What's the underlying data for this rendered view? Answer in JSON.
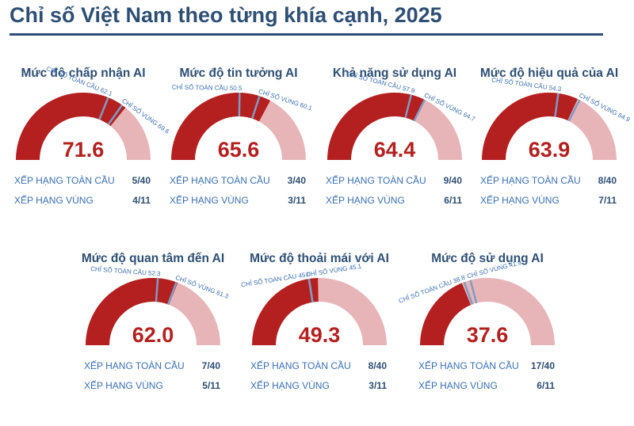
{
  "title": "Chỉ số Việt Nam theo từng khía cạnh, 2025",
  "colors": {
    "title": "#2e4f73",
    "score": "#b3201f",
    "gauge_fill": "#b3201f",
    "gauge_track": "#e7b5b8",
    "marker": "#7f9bc4",
    "rank_label": "#3a6fb0"
  },
  "chart_data": [
    {
      "type": "gauge",
      "title": "Mức độ chấp nhận AI",
      "value": 71.6,
      "range": [
        0,
        100
      ],
      "global_label": "CHỈ SỐ TOÀN CẦU",
      "global_index": 62.1,
      "regional_label": "CHỈ SỐ VÙNG",
      "regional_index": 69.6,
      "global_rank_label": "XẾP HẠNG TOÀN CẦU",
      "global_rank": "5/40",
      "regional_rank_label": "XẾP HẠNG VÙNG",
      "regional_rank": "4/11"
    },
    {
      "type": "gauge",
      "title": "Mức độ tin tưởng AI",
      "value": 65.6,
      "range": [
        0,
        100
      ],
      "global_label": "CHỈ SỐ TOÀN CẦU",
      "global_index": 50.5,
      "regional_label": "CHỈ SỐ VÙNG",
      "regional_index": 60.1,
      "global_rank_label": "XẾP HẠNG TOÀN CẦU",
      "global_rank": "3/40",
      "regional_rank_label": "XẾP HẠNG VÙNG",
      "regional_rank": "3/11"
    },
    {
      "type": "gauge",
      "title": "Khả năng sử dụng AI",
      "value": 64.4,
      "range": [
        0,
        100
      ],
      "global_label": "CHỈ SỐ TOÀN CẦU",
      "global_index": 57.9,
      "regional_label": "CHỈ SỐ VÙNG",
      "regional_index": 64.7,
      "global_rank_label": "XẾP HẠNG TOÀN CẦU",
      "global_rank": "9/40",
      "regional_rank_label": "XẾP HẠNG VÙNG",
      "regional_rank": "6/11"
    },
    {
      "type": "gauge",
      "title": "Mức độ hiệu quả của AI",
      "value": 63.9,
      "range": [
        0,
        100
      ],
      "global_label": "CHỈ SỐ TOÀN CẦU",
      "global_index": 54.3,
      "regional_label": "CHỈ SỐ VÙNG",
      "regional_index": 64.9,
      "global_rank_label": "XẾP HẠNG TOÀN CẦU",
      "global_rank": "8/40",
      "regional_rank_label": "XẾP HẠNG VÙNG",
      "regional_rank": "7/11"
    },
    {
      "type": "gauge",
      "title": "Mức độ quan tâm đến AI",
      "value": 62.0,
      "range": [
        0,
        100
      ],
      "global_label": "CHỈ SỐ TOÀN CẦU",
      "global_index": 52.3,
      "regional_label": "CHỈ SỐ VÙNG",
      "regional_index": 61.3,
      "global_rank_label": "XẾP HẠNG TOÀN CẦU",
      "global_rank": "7/40",
      "regional_rank_label": "XẾP HẠNG VÙNG",
      "regional_rank": "5/11"
    },
    {
      "type": "gauge",
      "title": "Mức độ thoải mái với AI",
      "value": 49.3,
      "range": [
        0,
        100
      ],
      "global_label": "CHỈ SỐ TOÀN CẦU",
      "global_index": 45.0,
      "regional_label": "CHỈ SỐ VÙNG",
      "regional_index": 45.1,
      "global_rank_label": "XẾP HẠNG TOÀN CẦU",
      "global_rank": "8/40",
      "regional_rank_label": "XẾP HẠNG VÙNG",
      "regional_rank": "3/11"
    },
    {
      "type": "gauge",
      "title": "Mức độ sử dụng AI",
      "value": 37.6,
      "range": [
        0,
        100
      ],
      "global_label": "CHỈ SỐ TOÀN CẦU",
      "global_index": 38.8,
      "regional_label": "CHỈ SỐ VÙNG",
      "regional_index": 41.9,
      "global_rank_label": "XẾP HẠNG TOÀN CẦU",
      "global_rank": "17/40",
      "regional_rank_label": "XẾP HẠNG VÙNG",
      "regional_rank": "6/11"
    }
  ]
}
